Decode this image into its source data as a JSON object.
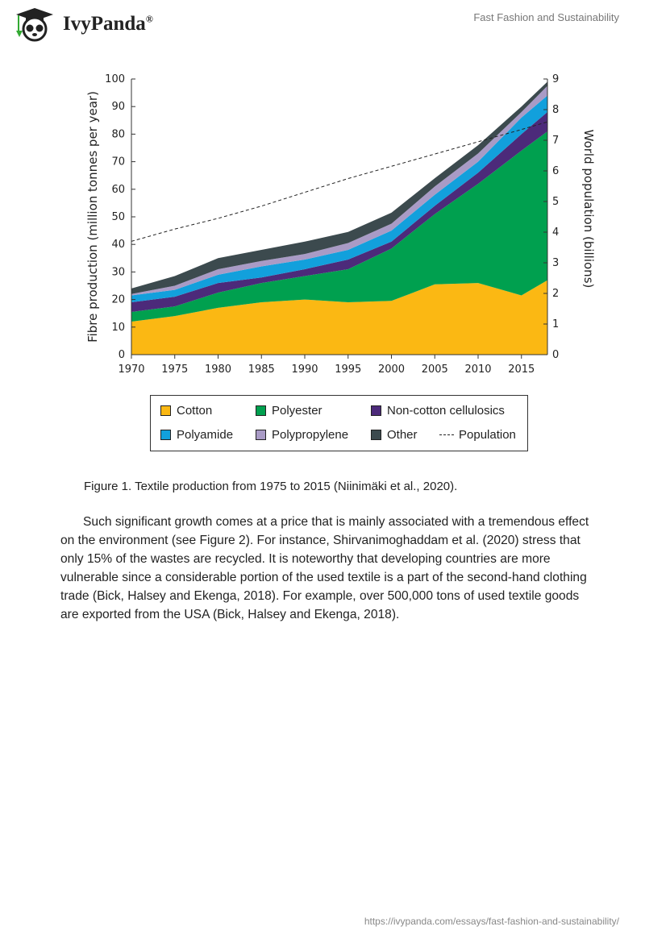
{
  "header": {
    "brand": "IvyPanda",
    "brand_mark": "®",
    "doc_title": "Fast Fashion and Sustainability"
  },
  "chart_data": {
    "type": "area",
    "stacked": true,
    "xlabel": "",
    "ylabel": "Fibre production (million tonnes per year)",
    "y2label": "World population (billions)",
    "x": [
      1970,
      1975,
      1980,
      1985,
      1990,
      1995,
      2000,
      2005,
      2010,
      2015,
      2018
    ],
    "xticks": [
      "1970",
      "1975",
      "1980",
      "1985",
      "1990",
      "1995",
      "2000",
      "2005",
      "2010",
      "2015"
    ],
    "yticks": [
      "0",
      "10",
      "20",
      "30",
      "40",
      "50",
      "60",
      "70",
      "80",
      "90",
      "100"
    ],
    "y2ticks": [
      "0",
      "1",
      "2",
      "3",
      "4",
      "5",
      "6",
      "7",
      "8",
      "9"
    ],
    "ylim": [
      0,
      100
    ],
    "y2lim": [
      0,
      9
    ],
    "grid": false,
    "legend_position": "bottom",
    "series": [
      {
        "name": "Cotton",
        "color": "#fbb813",
        "values": [
          12,
          14,
          17,
          19,
          20,
          19,
          19.5,
          25.5,
          26,
          21.5,
          27
        ]
      },
      {
        "name": "Polyester",
        "color": "#00a04f",
        "values": [
          3.5,
          3.5,
          5.5,
          7,
          8.5,
          12,
          19,
          25.5,
          36,
          52.5,
          54
        ]
      },
      {
        "name": "Non-cotton cellulosics",
        "color": "#4c2a7a",
        "values": [
          3.5,
          3.5,
          3.5,
          2,
          2.5,
          3.5,
          2.5,
          3,
          4,
          6,
          7
        ]
      },
      {
        "name": "Polyamide",
        "color": "#12a0dc",
        "values": [
          2.5,
          2.5,
          3,
          4,
          3.5,
          3.5,
          4,
          4,
          4,
          6,
          6
        ]
      },
      {
        "name": "Polypropylene",
        "color": "#a99bc6",
        "values": [
          0.5,
          1.5,
          2,
          2,
          2,
          2.5,
          2.5,
          3,
          3,
          2,
          3.5
        ]
      },
      {
        "name": "Other",
        "color": "#3c4a4e",
        "values": [
          2,
          3.5,
          4,
          4,
          4.5,
          4,
          4,
          3,
          3,
          2,
          1.5
        ]
      }
    ],
    "population": {
      "name": "Population",
      "axis": "right",
      "style": "dashed",
      "values": [
        3.7,
        4.1,
        4.45,
        4.85,
        5.3,
        5.75,
        6.15,
        6.55,
        6.95,
        7.35,
        7.6
      ]
    }
  },
  "caption": "Figure 1. Textile production from 1975 to 2015 (Niinimäki et al., 2020).",
  "paragraph": "Such significant growth comes at a price that is mainly associated with a tremendous effect on the environment (see Figure 2). For instance, Shirvanimoghaddam et al. (2020) stress that only 15% of the wastes are recycled. It is noteworthy that developing countries are more vulnerable since a considerable portion of the used textile is a part of the second-hand clothing trade (Bick, Halsey and Ekenga, 2018). For example, over 500,000 tons of used textile goods are exported from the USA (Bick, Halsey and Ekenga, 2018).",
  "footer": "https://ivypanda.com/essays/fast-fashion-and-sustainability/"
}
